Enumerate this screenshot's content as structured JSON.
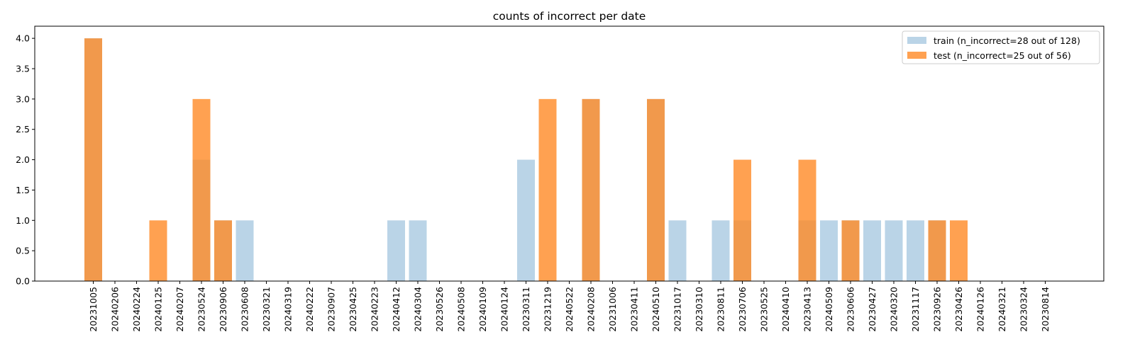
{
  "chart_data": {
    "type": "bar",
    "title": "counts of incorrect per date",
    "xlabel": "",
    "ylabel": "",
    "ylim": [
      0,
      4.2
    ],
    "yticks": [
      "0.0",
      "0.5",
      "1.0",
      "1.5",
      "2.0",
      "2.5",
      "3.0",
      "3.5",
      "4.0"
    ],
    "grid": false,
    "legend_position": "top-right",
    "overlay": true,
    "categories": [
      "20231005",
      "20240206",
      "20240224",
      "20240125",
      "20240207",
      "20230524",
      "20230906",
      "20230608",
      "20230321",
      "20240319",
      "20240222",
      "20230907",
      "20230425",
      "20240223",
      "20240412",
      "20240304",
      "20230526",
      "20240508",
      "20240109",
      "20240124",
      "20230311",
      "20231219",
      "20240522",
      "20240208",
      "20231006",
      "20230411",
      "20240510",
      "20231017",
      "20230310",
      "20230811",
      "20230706",
      "20230525",
      "20240410",
      "20230413",
      "20240509",
      "20230606",
      "20230427",
      "20240320",
      "20231117",
      "20230926",
      "20230426",
      "20240126",
      "20240321",
      "20230324",
      "20230814"
    ],
    "series": [
      {
        "name": "train (n_incorrect=28 out of 128)",
        "color": "#aecde3",
        "opacity": 0.85,
        "values": [
          4,
          0,
          0,
          0,
          0,
          2,
          1,
          1,
          0,
          0,
          0,
          0,
          0,
          0,
          1,
          1,
          0,
          0,
          0,
          0,
          2,
          0,
          0,
          3,
          0,
          0,
          3,
          1,
          0,
          1,
          1,
          0,
          0,
          1,
          1,
          1,
          1,
          1,
          1,
          1,
          0,
          0,
          0,
          0,
          0
        ]
      },
      {
        "name": "test (n_incorrect=25 out of 56)",
        "color": "#ff8a26",
        "opacity": 0.8,
        "values": [
          4,
          0,
          0,
          1,
          0,
          3,
          1,
          0,
          0,
          0,
          0,
          0,
          0,
          0,
          0,
          0,
          0,
          0,
          0,
          0,
          0,
          3,
          0,
          3,
          0,
          0,
          3,
          0,
          0,
          0,
          2,
          0,
          0,
          2,
          0,
          1,
          0,
          0,
          0,
          1,
          1,
          0,
          0,
          0,
          0
        ]
      }
    ]
  }
}
